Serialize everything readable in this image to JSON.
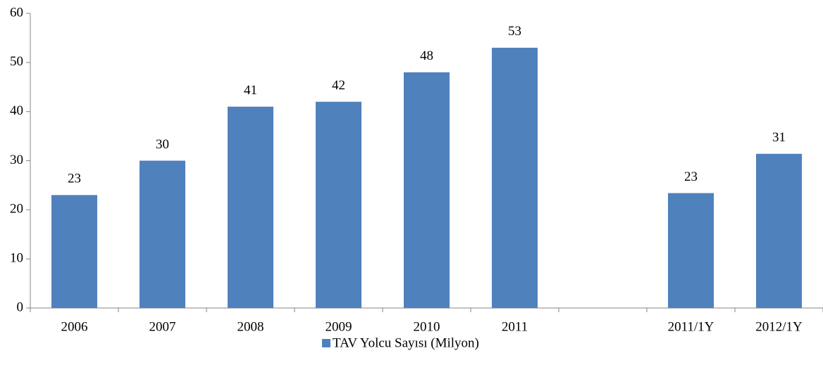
{
  "chart_data": {
    "type": "bar",
    "categories": [
      "2006",
      "2007",
      "2008",
      "2009",
      "2010",
      "2011",
      null,
      "2011/1Y",
      "2012/1Y"
    ],
    "series": [
      {
        "name": "TAV Yolcu Sayısı (Milyon)",
        "color": "#4f81bd",
        "values": [
          23,
          30,
          41,
          42,
          48,
          53,
          null,
          23.4,
          31.4
        ],
        "value_labels": [
          "23",
          "30",
          "41",
          "42",
          "48",
          "53",
          null,
          "23",
          "31"
        ]
      }
    ],
    "ylim": [
      0,
      60
    ],
    "yticks": [
      0,
      10,
      20,
      30,
      40,
      50,
      60
    ],
    "grid": false,
    "legend": "bottom"
  }
}
